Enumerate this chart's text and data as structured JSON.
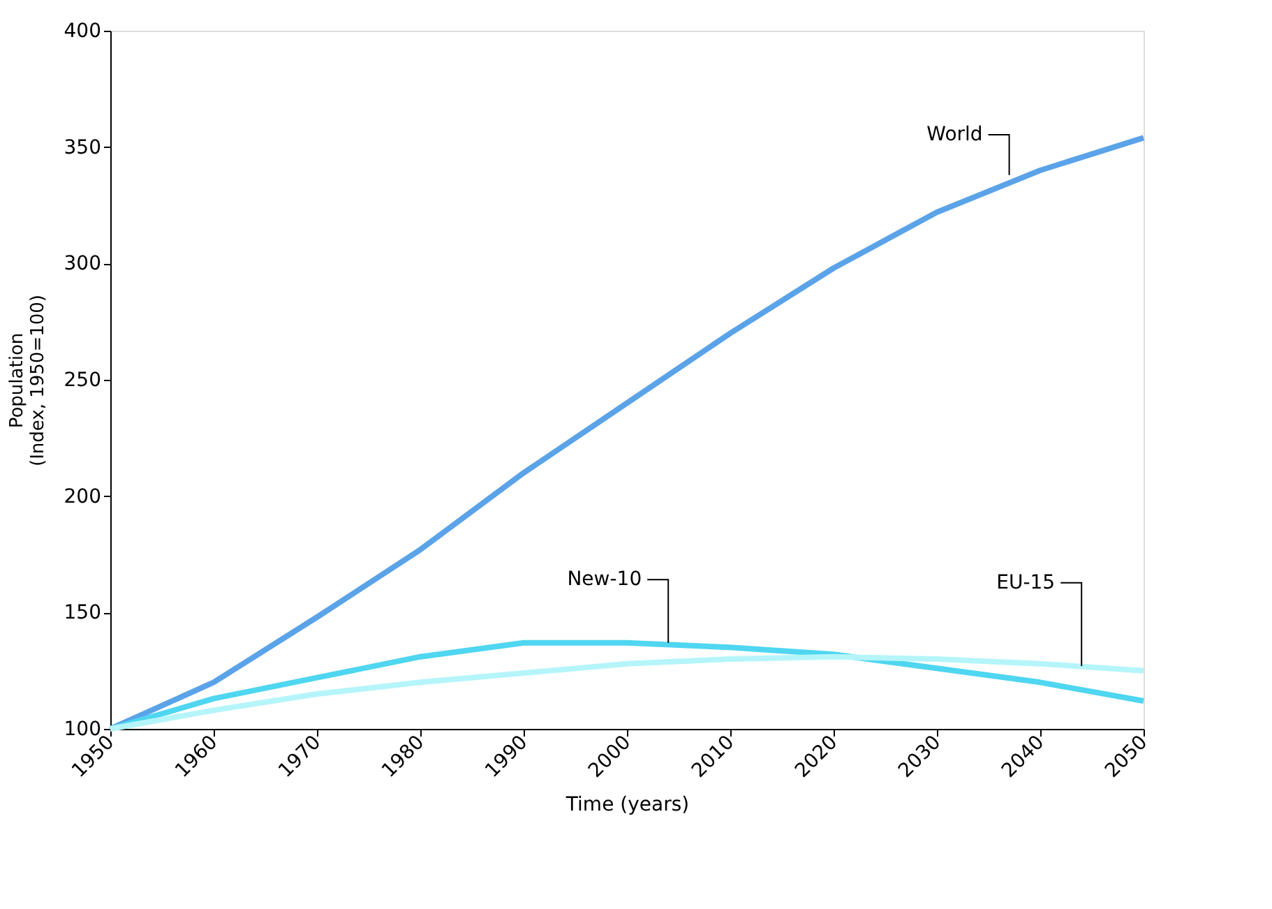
{
  "chart_data": {
    "type": "line",
    "xlabel": "Time (years)",
    "ylabel": "Population\n(Index, 1950=100)",
    "x": [
      1950,
      1960,
      1970,
      1980,
      1990,
      2000,
      2010,
      2020,
      2030,
      2040,
      2050
    ],
    "series": [
      {
        "color": "#5ba3e8",
        "values": [
          100,
          120,
          148,
          177,
          210,
          240,
          270,
          298,
          322,
          340,
          354
        ]
      },
      {
        "color": "#4fd6f0",
        "values": [
          100,
          113,
          122,
          131,
          137,
          137,
          135,
          132,
          126,
          120,
          112
        ]
      },
      {
        "color": "#b5f5fa",
        "values": [
          100,
          108,
          115,
          120,
          124,
          128,
          130,
          131,
          130,
          128,
          125
        ]
      }
    ],
    "annotations": [
      {
        "text": "World",
        "x": 2037,
        "y": 338
      },
      {
        "text": "New-10",
        "x": 2004,
        "y": 137
      },
      {
        "text": "EU-15",
        "x": 2044,
        "y": 127
      }
    ],
    "xlim": [
      1950,
      2050
    ],
    "xticks": [
      1950,
      1960,
      1970,
      1980,
      1990,
      2000,
      2010,
      2020,
      2030,
      2040,
      2050
    ],
    "ylim": [
      100,
      400
    ],
    "yticks": [
      100,
      150,
      200,
      250,
      300,
      350,
      400
    ],
    "grid": false,
    "marker": "none",
    "line_style": "solid"
  }
}
